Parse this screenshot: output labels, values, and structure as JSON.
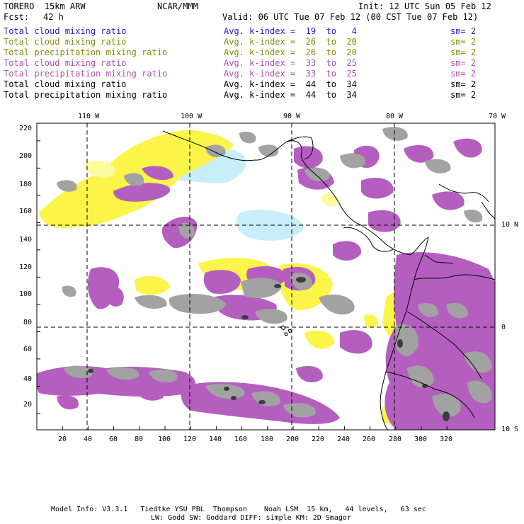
{
  "header": {
    "model": "TORERO  15km ARW",
    "org": "NCAR/MMM",
    "init": "Init: 12 UTC Sun 05 Feb 12",
    "fcst_label": "Fcst:",
    "fcst_value": "42 h",
    "valid": "Valid: 06 UTC Tue 07 Feb 12 (00 CST Tue 07 Feb 12)"
  },
  "legend": [
    {
      "field": "Total cloud mixing ratio",
      "avg": "Avg. k-index =  19  to   4",
      "sm": "sm= 2",
      "color": "#1f1fc8"
    },
    {
      "field": "Total cloud mixing ratio",
      "avg": "Avg. k-index =  26  to  20",
      "sm": "sm= 2",
      "color": "#8a8a00"
    },
    {
      "field": "Total precipitation mixing ratio",
      "avg": "Avg. k-index =  26  to  20",
      "sm": "sm= 2",
      "color": "#8a8a00"
    },
    {
      "field": "Total cloud mixing ratio",
      "avg": "Avg. k-index =  33  to  25",
      "sm": "sm= 2",
      "color": "#b050b0"
    },
    {
      "field": "Total precipitation mixing ratio",
      "avg": "Avg. k-index =  33  to  25",
      "sm": "sm= 2",
      "color": "#b050b0"
    },
    {
      "field": "Total cloud mixing ratio",
      "avg": "Avg. k-index =  44  to  34",
      "sm": "sm= 2",
      "color": "#000000"
    },
    {
      "field": "Total precipitation mixing ratio",
      "avg": "Avg. k-index =  44  to  34",
      "sm": "sm= 2",
      "color": "#000000"
    }
  ],
  "map": {
    "lon_labels": [
      "110 W",
      "100 W",
      "90 W",
      "80 W",
      "70 W"
    ],
    "lat_labels": [
      "10 N",
      "0",
      "10 S"
    ],
    "x_ticks": [
      "20",
      "40",
      "60",
      "80",
      "100",
      "120",
      "140",
      "160",
      "180",
      "200",
      "220",
      "240",
      "260",
      "280",
      "300",
      "320"
    ],
    "y_ticks": [
      "20",
      "40",
      "60",
      "80",
      "100",
      "120",
      "140",
      "160",
      "180",
      "200",
      "220"
    ],
    "colors": {
      "light_blue": "#c8eefa",
      "yellow": "#fbf54a",
      "light_yellow": "#fbfa9c",
      "purple": "#b45fc0",
      "gray": "#a2a2a2",
      "dark": "#3c3c3c"
    }
  },
  "footer": {
    "line1": "Model Info: V3.3.1   Tiedtke YSU PBL  Thompson    Noah LSM  15 km,   44 levels,   63 sec",
    "line2": "LW: Godd SW: Goddard DIFF: simple KM: 2D Smagor"
  }
}
